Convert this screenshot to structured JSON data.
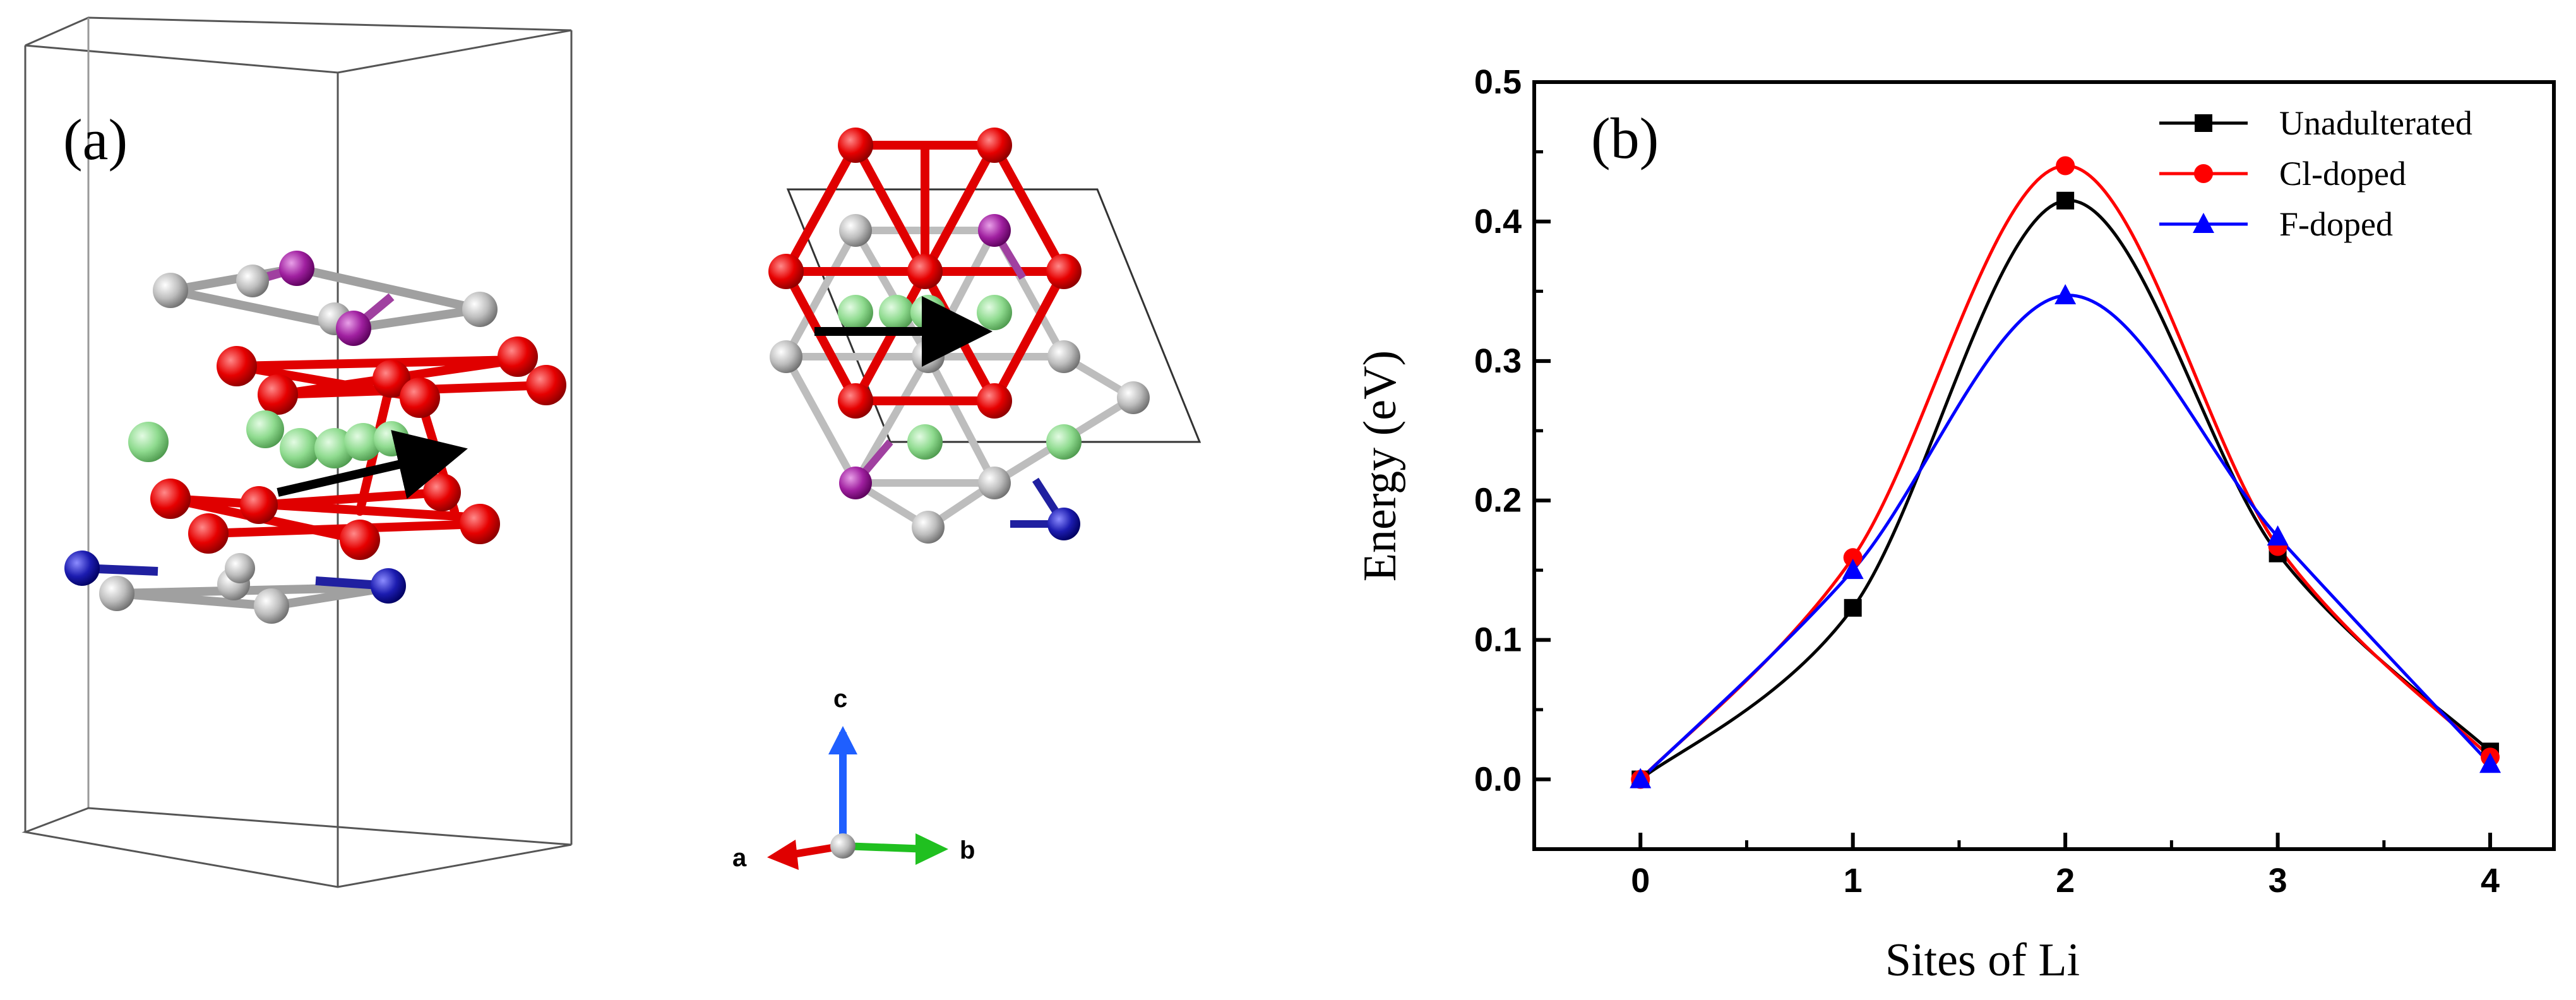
{
  "panel_a": {
    "label": "(a)",
    "axes": {
      "c": "c",
      "a": "a",
      "b": "b"
    }
  },
  "chart_data": {
    "type": "line",
    "panel_label": "(b)",
    "xlabel": "Sites of Li",
    "ylabel": "Energy (eV)",
    "xlim": [
      -0.5,
      4.3
    ],
    "ylim": [
      -0.05,
      0.5
    ],
    "xticks": [
      0,
      1,
      2,
      3,
      4
    ],
    "yticks": [
      0.0,
      0.1,
      0.2,
      0.3,
      0.4,
      0.5
    ],
    "xtick_labels": [
      "0",
      "1",
      "2",
      "3",
      "4"
    ],
    "ytick_labels": [
      "0.0",
      "0.1",
      "0.2",
      "0.3",
      "0.4",
      "0.5"
    ],
    "legend_position": "top-right",
    "series": [
      {
        "name": "Unadulterated",
        "color": "#000000",
        "marker": "square",
        "x": [
          0,
          1,
          2,
          3,
          4
        ],
        "y": [
          0.0,
          0.123,
          0.415,
          0.162,
          0.02
        ]
      },
      {
        "name": "Cl-doped",
        "color": "#ff0000",
        "marker": "circle",
        "x": [
          0,
          1,
          2,
          3,
          4
        ],
        "y": [
          0.0,
          0.159,
          0.44,
          0.167,
          0.016
        ]
      },
      {
        "name": "F-doped",
        "color": "#0000ff",
        "marker": "triangle",
        "x": [
          0,
          1,
          2,
          3,
          4
        ],
        "y": [
          0.0,
          0.15,
          0.347,
          0.174,
          0.011
        ]
      }
    ]
  }
}
